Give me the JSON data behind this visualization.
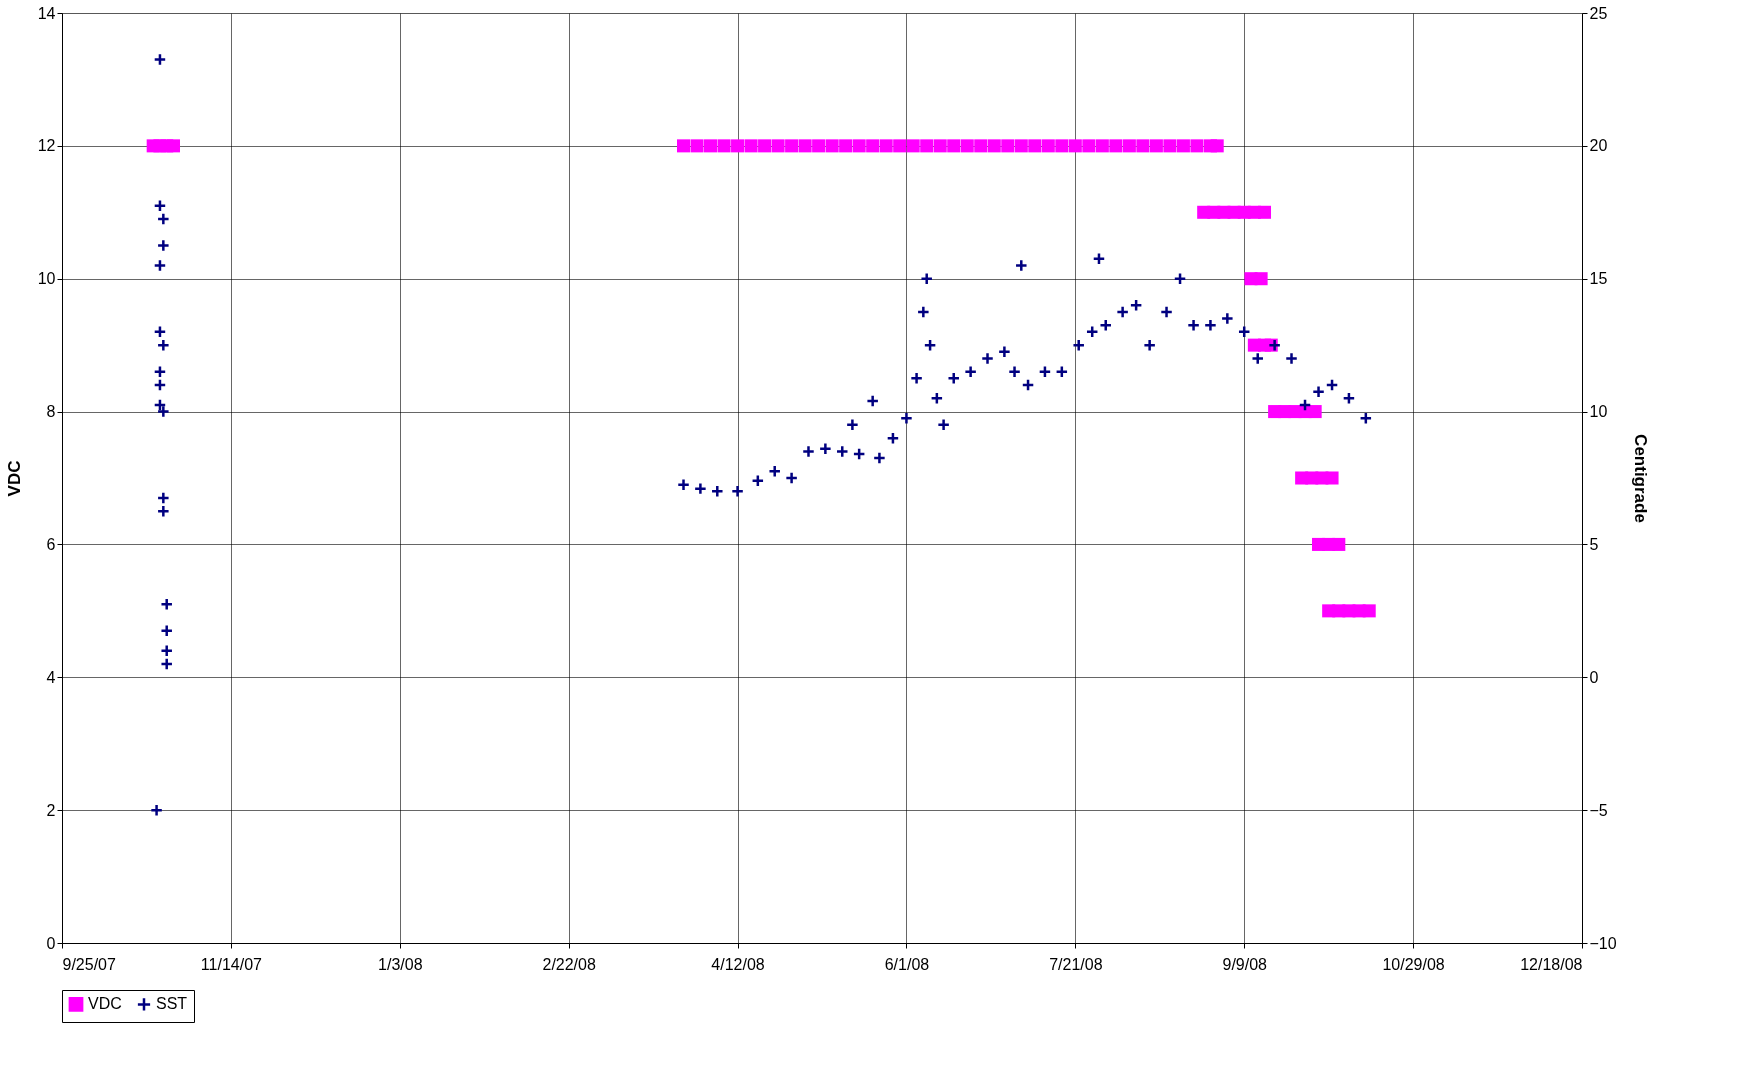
{
  "chart_data": {
    "type": "scatter",
    "ylabel": "VDC",
    "y2label": "Centigrade",
    "grid": true,
    "legend": "bottom",
    "xlim": [
      "2007-09-25",
      "2008-12-18"
    ],
    "xticks": [
      {
        "value": "2007-09-25",
        "label": "9/25/07"
      },
      {
        "value": "2007-11-14",
        "label": "11/14/07"
      },
      {
        "value": "2008-01-03",
        "label": "1/3/08"
      },
      {
        "value": "2008-02-22",
        "label": "2/22/08"
      },
      {
        "value": "2008-04-12",
        "label": "4/12/08"
      },
      {
        "value": "2008-06-01",
        "label": "6/1/08"
      },
      {
        "value": "2008-07-21",
        "label": "7/21/08"
      },
      {
        "value": "2008-09-09",
        "label": "9/9/08"
      },
      {
        "value": "2008-10-29",
        "label": "10/29/08"
      },
      {
        "value": "2008-12-18",
        "label": "12/18/08"
      }
    ],
    "ylim": [
      0,
      14
    ],
    "yticks": [
      0,
      2,
      4,
      6,
      8,
      10,
      12,
      14
    ],
    "y2lim": [
      -10,
      25
    ],
    "y2ticks": [
      -10,
      -5,
      0,
      5,
      10,
      15,
      20,
      25
    ],
    "series": [
      {
        "name": "VDC",
        "marker": "square",
        "color": "#ff00ff",
        "x": [
          "2007-10-22",
          "2007-10-24",
          "2007-10-26",
          "2007-10-28",
          "2008-03-27",
          "2008-03-31",
          "2008-04-04",
          "2008-04-08",
          "2008-04-12",
          "2008-04-16",
          "2008-04-20",
          "2008-04-24",
          "2008-04-28",
          "2008-05-02",
          "2008-05-06",
          "2008-05-10",
          "2008-05-14",
          "2008-05-18",
          "2008-05-22",
          "2008-05-26",
          "2008-05-30",
          "2008-06-03",
          "2008-06-07",
          "2008-06-11",
          "2008-06-15",
          "2008-06-19",
          "2008-06-23",
          "2008-06-27",
          "2008-07-01",
          "2008-07-05",
          "2008-07-09",
          "2008-07-13",
          "2008-07-17",
          "2008-07-21",
          "2008-07-25",
          "2008-07-29",
          "2008-08-02",
          "2008-08-06",
          "2008-08-10",
          "2008-08-14",
          "2008-08-18",
          "2008-08-22",
          "2008-08-26",
          "2008-08-30",
          "2008-09-01",
          "2008-08-28",
          "2008-08-31",
          "2008-09-03",
          "2008-09-06",
          "2008-09-09",
          "2008-09-12",
          "2008-09-15",
          "2008-09-11",
          "2008-09-14",
          "2008-09-12",
          "2008-09-15",
          "2008-09-17",
          "2008-09-18",
          "2008-09-21",
          "2008-09-24",
          "2008-09-27",
          "2008-09-30",
          "2008-09-26",
          "2008-09-29",
          "2008-10-02",
          "2008-10-05",
          "2008-10-01",
          "2008-10-04",
          "2008-10-07",
          "2008-10-04",
          "2008-10-07",
          "2008-10-10",
          "2008-10-13",
          "2008-10-16"
        ],
        "values": [
          12,
          12,
          12,
          12,
          12,
          12,
          12,
          12,
          12,
          12,
          12,
          12,
          12,
          12,
          12,
          12,
          12,
          12,
          12,
          12,
          12,
          12,
          12,
          12,
          12,
          12,
          12,
          12,
          12,
          12,
          12,
          12,
          12,
          12,
          12,
          12,
          12,
          12,
          12,
          12,
          12,
          12,
          12,
          12,
          12,
          11,
          11,
          11,
          11,
          11,
          11,
          11,
          10,
          10,
          9,
          9,
          9,
          8,
          8,
          8,
          8,
          8,
          7,
          7,
          7,
          7,
          6,
          6,
          6,
          5,
          5,
          5,
          5,
          5
        ]
      },
      {
        "name": "SST",
        "marker": "cross",
        "color": "#000080",
        "axis": "y2",
        "x": [
          "2007-10-23",
          "2007-10-24",
          "2007-10-24",
          "2007-10-25",
          "2007-10-25",
          "2007-10-24",
          "2007-10-24",
          "2007-10-25",
          "2007-10-24",
          "2007-10-24",
          "2007-10-24",
          "2007-10-25",
          "2007-10-25",
          "2007-10-25",
          "2007-10-26",
          "2007-10-26",
          "2007-10-26",
          "2007-10-26",
          "2008-03-27",
          "2008-04-01",
          "2008-04-06",
          "2008-04-12",
          "2008-04-18",
          "2008-04-23",
          "2008-04-28",
          "2008-05-03",
          "2008-05-08",
          "2008-05-13",
          "2008-05-16",
          "2008-05-18",
          "2008-05-22",
          "2008-05-24",
          "2008-05-28",
          "2008-06-01",
          "2008-06-04",
          "2008-06-06",
          "2008-06-07",
          "2008-06-08",
          "2008-06-10",
          "2008-06-12",
          "2008-06-15",
          "2008-06-20",
          "2008-06-25",
          "2008-06-30",
          "2008-07-03",
          "2008-07-05",
          "2008-07-07",
          "2008-07-12",
          "2008-07-17",
          "2008-07-22",
          "2008-07-26",
          "2008-07-28",
          "2008-07-30",
          "2008-08-04",
          "2008-08-08",
          "2008-08-12",
          "2008-08-17",
          "2008-08-21",
          "2008-08-25",
          "2008-08-30",
          "2008-09-04",
          "2008-09-09",
          "2008-09-13",
          "2008-09-18",
          "2008-09-23",
          "2008-09-27",
          "2008-10-01",
          "2008-10-05",
          "2008-10-10",
          "2008-10-15"
        ],
        "values": [
          -5,
          23.25,
          17.75,
          17.25,
          16.25,
          15.5,
          13,
          12.5,
          11.5,
          11,
          10.25,
          10,
          6.75,
          6.25,
          2.75,
          1.75,
          1,
          0.5,
          7.25,
          7.1,
          7,
          7,
          7.4,
          7.75,
          7.5,
          8.5,
          8.6,
          8.5,
          9.5,
          8.4,
          10.4,
          8.25,
          9,
          9.75,
          11.25,
          13.75,
          15,
          12.5,
          10.5,
          9.5,
          11.25,
          11.5,
          12,
          12.25,
          11.5,
          15.5,
          11,
          11.5,
          11.5,
          12.5,
          13,
          15.75,
          13.25,
          13.75,
          14,
          12.5,
          13.75,
          15,
          13.25,
          13.25,
          13.5,
          13,
          12,
          12.5,
          12,
          10.25,
          10.75,
          11,
          10.5,
          9.75
        ]
      }
    ]
  }
}
